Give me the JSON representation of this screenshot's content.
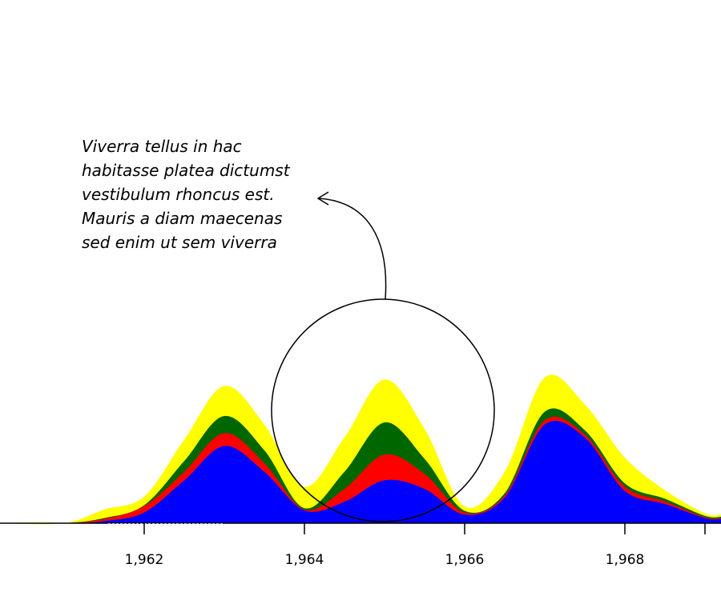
{
  "chart_data": {
    "type": "area",
    "stacked": true,
    "smooth": true,
    "x_ticks": [
      1962,
      1964,
      1966,
      1968
    ],
    "x_tick_labels": [
      "1,962",
      "1,964",
      "1,966",
      "1,968"
    ],
    "xlim": [
      1960.2,
      1969.2
    ],
    "ylim": [
      0,
      5
    ],
    "grid": false,
    "x": [
      1960.2,
      1961.0,
      1961.5,
      1962.0,
      1962.5,
      1963.0,
      1963.5,
      1964.0,
      1964.5,
      1965.0,
      1965.5,
      1966.0,
      1966.5,
      1967.0,
      1967.5,
      1968.0,
      1968.5,
      1969.0,
      1969.2
    ],
    "series": [
      {
        "color": "#0000ff",
        "values": [
          0,
          0,
          0.05,
          0.25,
          1.0,
          1.8,
          1.2,
          0.3,
          0.5,
          1.0,
          0.8,
          0.2,
          0.6,
          2.3,
          2.0,
          0.75,
          0.45,
          0.12,
          0.1
        ]
      },
      {
        "color": "#ff0000",
        "values": [
          0,
          0,
          0.05,
          0.15,
          0.2,
          0.3,
          0.2,
          0.02,
          0.3,
          0.6,
          0.35,
          0.05,
          0.05,
          0.1,
          0.07,
          0.1,
          0.06,
          0.02,
          0.02
        ]
      },
      {
        "color": "#006600",
        "values": [
          0,
          0,
          0.02,
          0.02,
          0.25,
          0.4,
          0.3,
          0.03,
          0.4,
          0.75,
          0.35,
          0.04,
          0.05,
          0.2,
          0.1,
          0.08,
          0.06,
          0.03,
          0.03
        ]
      },
      {
        "color": "#ffff00",
        "values": [
          0,
          0,
          0.2,
          0.2,
          0.5,
          0.7,
          0.6,
          0.5,
          0.8,
          1.0,
          0.7,
          0.1,
          0.5,
          0.8,
          0.6,
          0.6,
          0.2,
          0.06,
          0.05
        ]
      }
    ]
  },
  "annotation": {
    "text": "Viverra tellus in hac habitasse platea dictumst vestibulum rhoncus est. Mauris a diam maecenas sed enim ut sem viverra"
  }
}
